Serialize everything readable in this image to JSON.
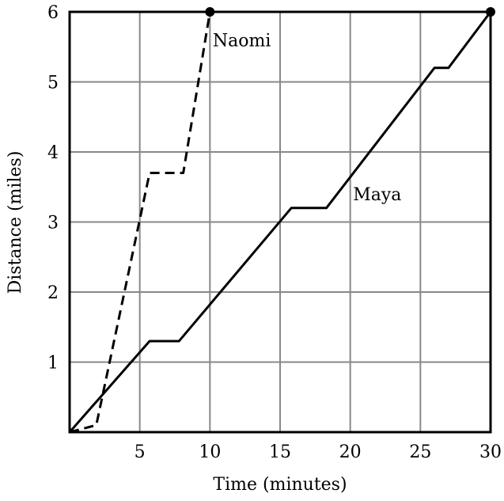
{
  "chart_data": {
    "type": "line",
    "title": "",
    "xlabel": "Time (minutes)",
    "ylabel": "Distance (miles)",
    "xlim": [
      0,
      30
    ],
    "ylim": [
      0,
      6
    ],
    "grid": true,
    "xticks": [
      5,
      10,
      15,
      20,
      25,
      30
    ],
    "yticks": [
      1,
      2,
      3,
      4,
      5,
      6
    ],
    "series": [
      {
        "name": "Naomi",
        "style": "dashed",
        "color": "#000000",
        "x": [
          0,
          1.9,
          5.7,
          8.1,
          10
        ],
        "y": [
          0,
          0.1,
          3.7,
          3.7,
          6
        ]
      },
      {
        "name": "Maya",
        "style": "solid",
        "color": "#000000",
        "x": [
          0,
          5.7,
          7.8,
          15.8,
          18.3,
          26,
          27,
          30
        ],
        "y": [
          0,
          1.3,
          1.3,
          3.2,
          3.2,
          5.2,
          5.2,
          6
        ]
      }
    ],
    "annotations": [
      {
        "text": "Naomi",
        "x": 10.2,
        "y": 5.6
      },
      {
        "text": "Maya",
        "x": 20.2,
        "y": 3.4
      }
    ]
  }
}
